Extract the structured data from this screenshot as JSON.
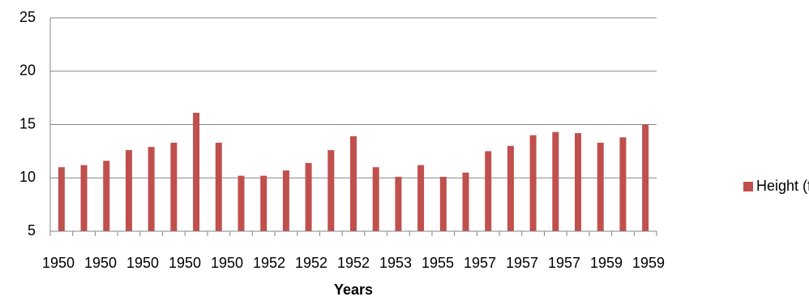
{
  "chart_data": {
    "type": "bar",
    "x_axis_label": "Years",
    "x_tick_labels": [
      "1950",
      "1950",
      "1950",
      "1950",
      "1950",
      "1952",
      "1952",
      "1952",
      "1953",
      "1955",
      "1957",
      "1957",
      "1957",
      "1959",
      "1959"
    ],
    "series": [
      {
        "name": "Height (ft)",
        "color": "#c0504d",
        "values": [
          11.0,
          11.2,
          11.6,
          12.6,
          12.9,
          13.3,
          16.1,
          13.3,
          10.2,
          10.2,
          10.7,
          11.4,
          12.6,
          13.9,
          11.0,
          10.1,
          11.2,
          10.1,
          10.5,
          12.5,
          13.0,
          14.0,
          14.3,
          14.2,
          13.3,
          13.8,
          15.0
        ]
      }
    ],
    "ylim": [
      5,
      25
    ],
    "yticks": [
      5,
      10,
      15,
      20,
      25
    ],
    "grid": true,
    "legend": "right"
  }
}
